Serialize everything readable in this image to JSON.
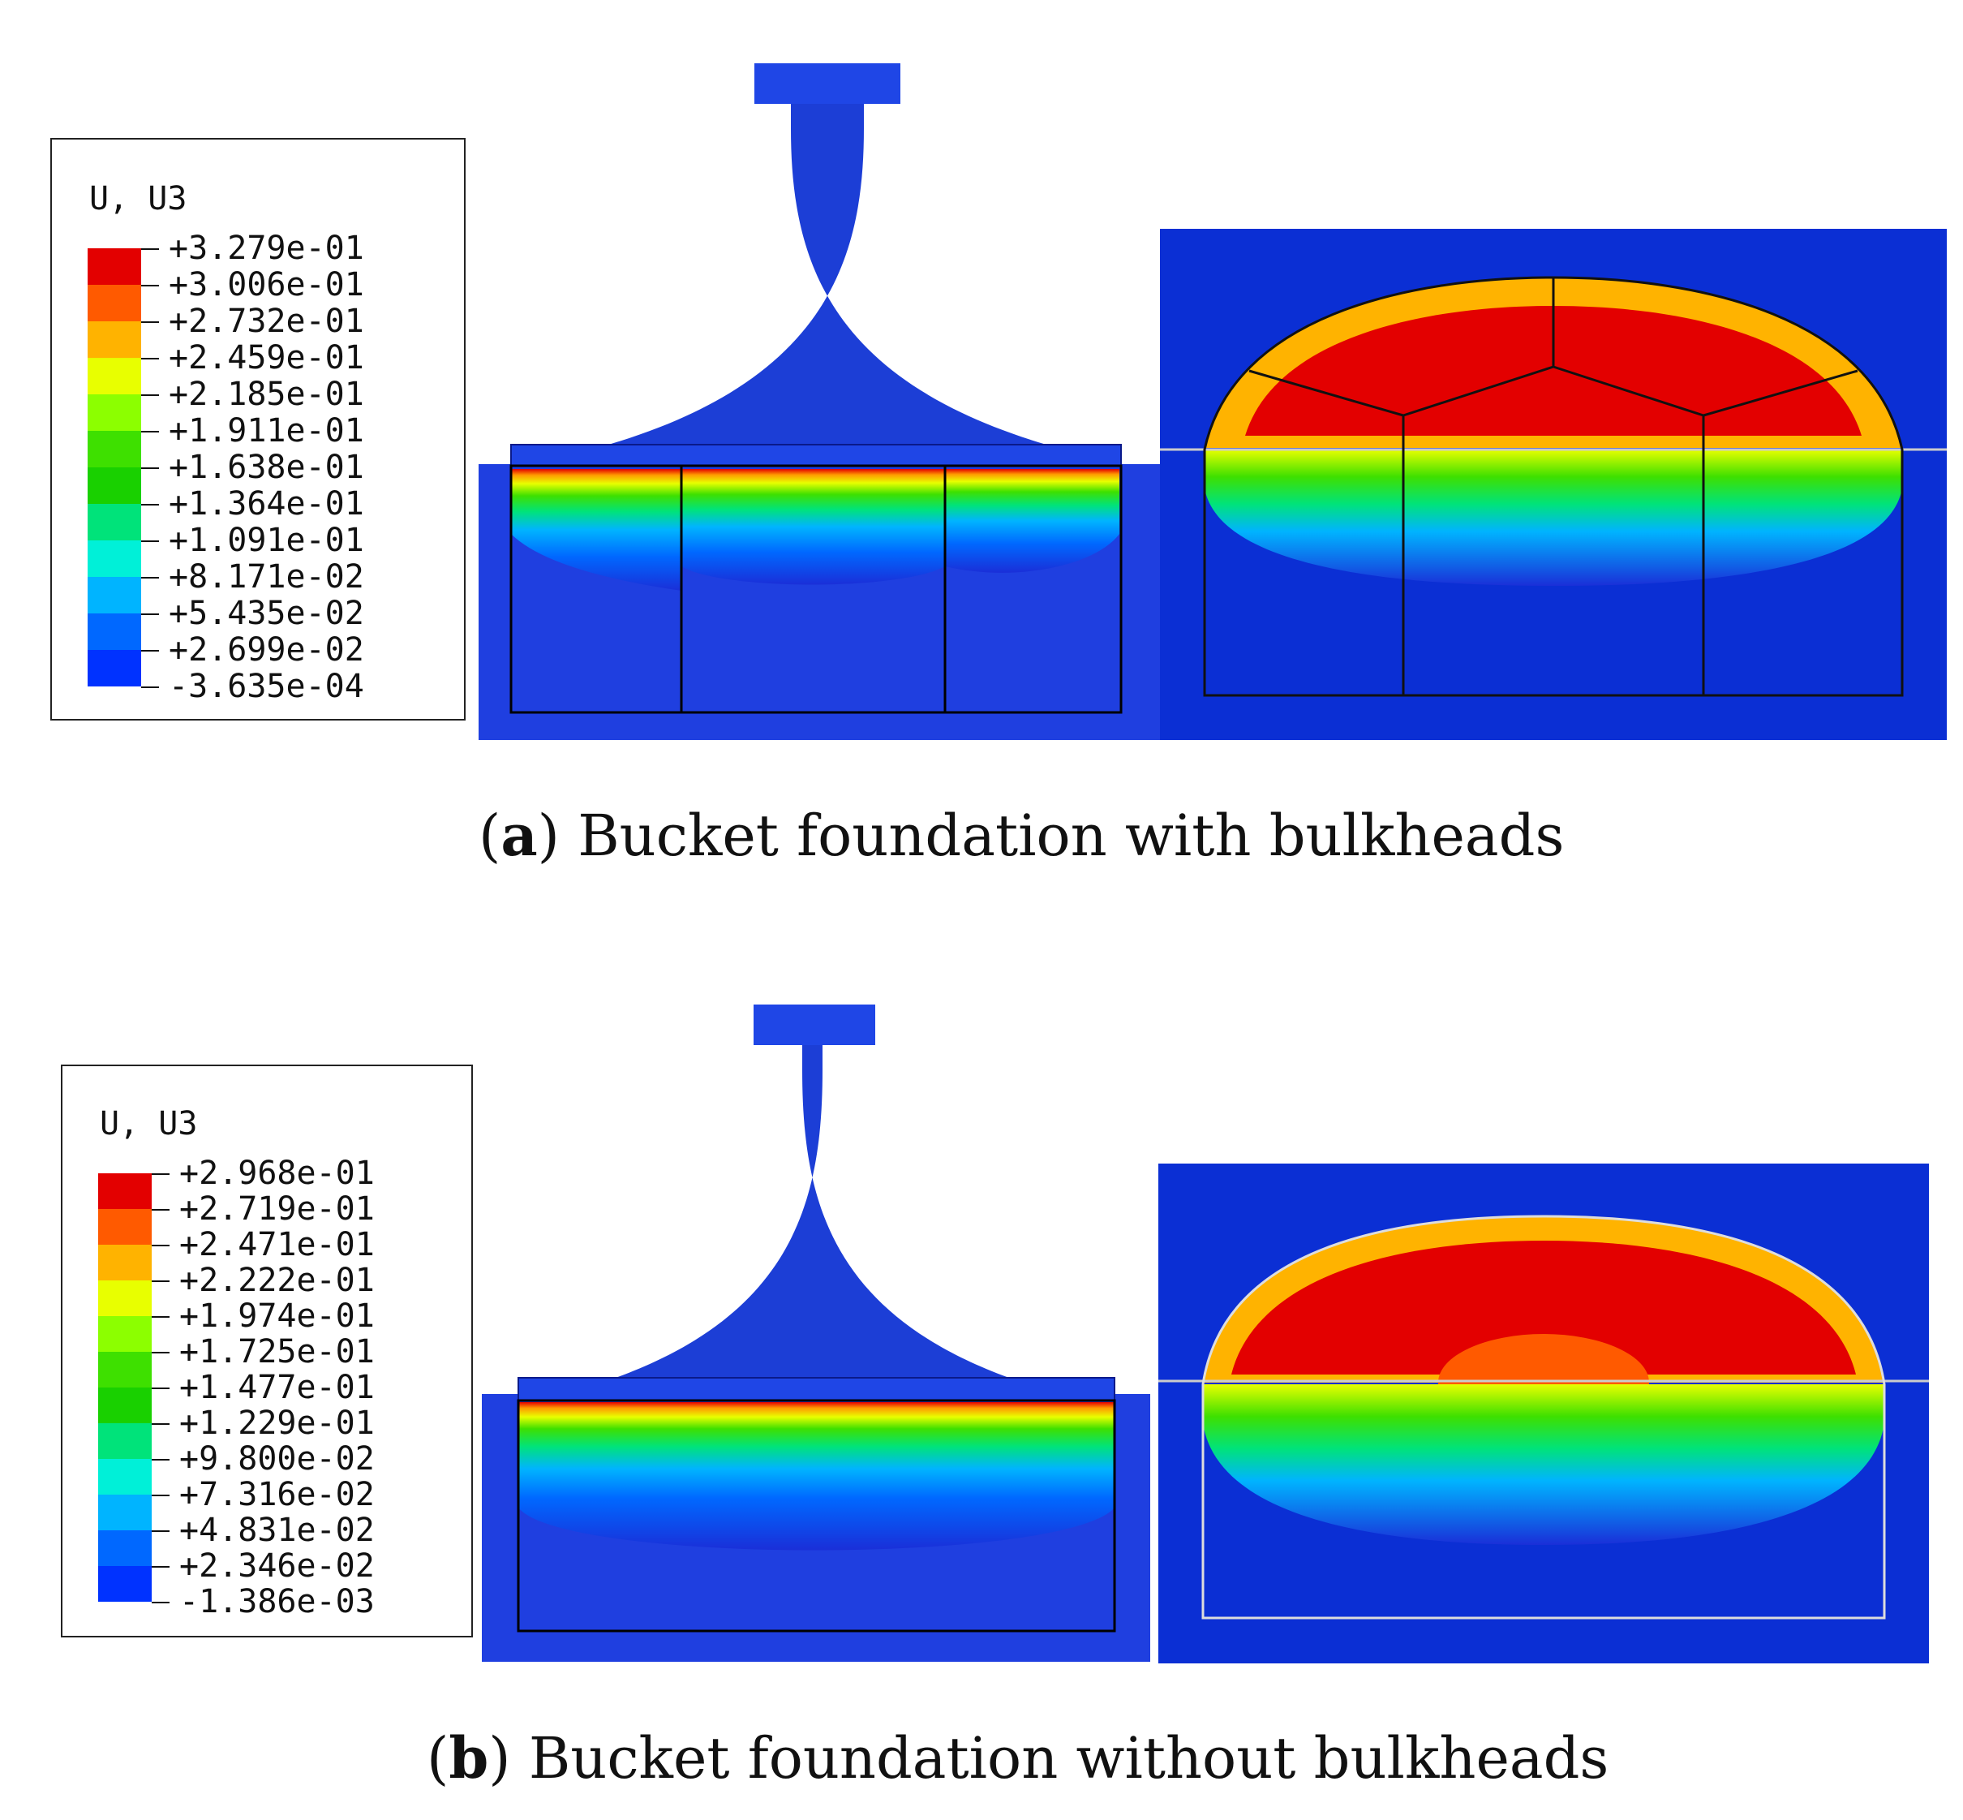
{
  "panel_a": {
    "legend": {
      "title": "U, U3",
      "labels": [
        "+3.279e-01",
        "+3.006e-01",
        "+2.732e-01",
        "+2.459e-01",
        "+2.185e-01",
        "+1.911e-01",
        "+1.638e-01",
        "+1.364e-01",
        "+1.091e-01",
        "+8.171e-02",
        "+5.435e-02",
        "+2.699e-02",
        "-3.635e-04"
      ]
    },
    "caption_letter": "a",
    "caption_text": " Bucket foundation with bulkheads"
  },
  "panel_b": {
    "legend": {
      "title": "U, U3",
      "labels": [
        "+2.968e-01",
        "+2.719e-01",
        "+2.471e-01",
        "+2.222e-01",
        "+1.974e-01",
        "+1.725e-01",
        "+1.477e-01",
        "+1.229e-01",
        "+9.800e-02",
        "+7.316e-02",
        "+4.831e-02",
        "+2.346e-02",
        "-1.386e-03"
      ]
    },
    "caption_letter": "b",
    "caption_text": " Bucket foundation without bulkheads"
  },
  "colors": {
    "scale": [
      "#e30000",
      "#ff5a00",
      "#ffb300",
      "#e8ff00",
      "#8cff00",
      "#3ee000",
      "#19d000",
      "#00e37a",
      "#00f0d8",
      "#00b4ff",
      "#0068ff",
      "#0032ff",
      "#0010e0"
    ],
    "soil": "#0b2fd4",
    "structure": "#1a44d8"
  }
}
